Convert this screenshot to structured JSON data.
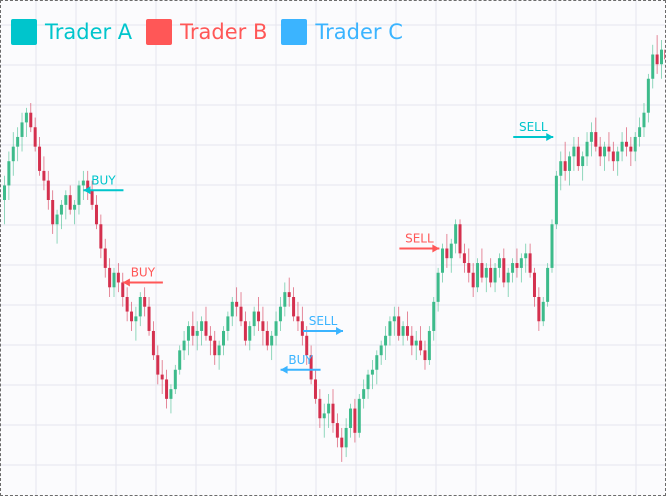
{
  "chart_data": {
    "type": "candlestick",
    "colors": {
      "up": "#3dbb8b",
      "down": "#d4304e",
      "grid": "#e6e6ee"
    },
    "legend": [
      {
        "name": "Trader A",
        "color": "#00c5cc"
      },
      {
        "name": "Trader B",
        "color": "#ff5757"
      },
      {
        "name": "Trader C",
        "color": "#3bb4ff"
      }
    ],
    "ylim": [
      0,
      100
    ],
    "candles": [
      [
        60,
        65,
        55,
        63
      ],
      [
        63,
        70,
        60,
        68
      ],
      [
        68,
        74,
        65,
        71
      ],
      [
        71,
        75,
        68,
        73
      ],
      [
        73,
        78,
        70,
        76
      ],
      [
        76,
        79,
        73,
        78
      ],
      [
        78,
        80,
        74,
        75
      ],
      [
        75,
        77,
        70,
        71
      ],
      [
        71,
        73,
        65,
        66
      ],
      [
        66,
        69,
        62,
        64
      ],
      [
        64,
        66,
        58,
        60
      ],
      [
        60,
        62,
        53,
        55
      ],
      [
        55,
        58,
        51,
        57
      ],
      [
        57,
        60,
        54,
        59
      ],
      [
        59,
        62,
        56,
        61
      ],
      [
        61,
        63,
        57,
        58
      ],
      [
        58,
        60,
        55,
        59
      ],
      [
        59,
        64,
        57,
        63
      ],
      [
        63,
        66,
        60,
        64
      ],
      [
        64,
        66,
        60,
        62
      ],
      [
        62,
        64,
        58,
        59
      ],
      [
        59,
        61,
        54,
        55
      ],
      [
        55,
        57,
        48,
        50
      ],
      [
        50,
        52,
        44,
        46
      ],
      [
        46,
        48,
        40,
        42
      ],
      [
        42,
        46,
        40,
        45
      ],
      [
        45,
        47,
        41,
        43
      ],
      [
        43,
        45,
        38,
        40
      ],
      [
        40,
        42,
        35,
        37
      ],
      [
        37,
        39,
        33,
        35
      ],
      [
        35,
        38,
        31,
        36
      ],
      [
        36,
        41,
        34,
        40
      ],
      [
        40,
        42,
        36,
        38
      ],
      [
        38,
        40,
        32,
        33
      ],
      [
        33,
        35,
        27,
        28
      ],
      [
        28,
        30,
        22,
        24
      ],
      [
        24,
        27,
        20,
        23
      ],
      [
        23,
        25,
        17,
        19
      ],
      [
        19,
        22,
        16,
        21
      ],
      [
        21,
        26,
        20,
        25
      ],
      [
        25,
        30,
        24,
        29
      ],
      [
        29,
        33,
        27,
        31
      ],
      [
        31,
        35,
        28,
        34
      ],
      [
        34,
        37,
        30,
        32
      ],
      [
        32,
        35,
        29,
        33
      ],
      [
        33,
        36,
        30,
        35
      ],
      [
        35,
        38,
        31,
        32
      ],
      [
        32,
        34,
        28,
        31
      ],
      [
        31,
        33,
        26,
        28
      ],
      [
        28,
        31,
        25,
        30
      ],
      [
        30,
        34,
        28,
        33
      ],
      [
        33,
        37,
        31,
        36
      ],
      [
        36,
        40,
        34,
        39
      ],
      [
        39,
        42,
        36,
        38
      ],
      [
        38,
        41,
        34,
        35
      ],
      [
        35,
        37,
        30,
        31
      ],
      [
        31,
        35,
        29,
        34
      ],
      [
        34,
        38,
        32,
        37
      ],
      [
        37,
        40,
        33,
        35
      ],
      [
        35,
        38,
        30,
        33
      ],
      [
        33,
        35,
        29,
        30
      ],
      [
        30,
        33,
        27,
        32
      ],
      [
        32,
        37,
        30,
        35
      ],
      [
        35,
        40,
        33,
        38
      ],
      [
        38,
        43,
        36,
        41
      ],
      [
        41,
        44,
        38,
        40
      ],
      [
        40,
        42,
        35,
        36
      ],
      [
        36,
        39,
        33,
        35
      ],
      [
        35,
        38,
        30,
        32
      ],
      [
        32,
        34,
        26,
        28
      ],
      [
        28,
        30,
        22,
        23
      ],
      [
        23,
        25,
        18,
        19
      ],
      [
        19,
        21,
        13,
        15
      ],
      [
        15,
        18,
        11,
        16
      ],
      [
        16,
        20,
        13,
        18
      ],
      [
        18,
        21,
        12,
        14
      ],
      [
        14,
        16,
        9,
        11
      ],
      [
        11,
        13,
        6,
        9
      ],
      [
        9,
        15,
        7,
        13
      ],
      [
        13,
        18,
        11,
        17
      ],
      [
        17,
        19,
        10,
        12
      ],
      [
        12,
        20,
        11,
        19
      ],
      [
        19,
        23,
        17,
        21
      ],
      [
        21,
        25,
        19,
        24
      ],
      [
        24,
        27,
        21,
        25
      ],
      [
        25,
        29,
        22,
        28
      ],
      [
        28,
        31,
        26,
        30
      ],
      [
        30,
        34,
        27,
        32
      ],
      [
        32,
        36,
        30,
        35
      ],
      [
        35,
        38,
        32,
        36
      ],
      [
        36,
        38,
        31,
        32
      ],
      [
        32,
        35,
        30,
        34
      ],
      [
        34,
        37,
        31,
        32
      ],
      [
        32,
        34,
        28,
        30
      ],
      [
        30,
        33,
        27,
        31
      ],
      [
        31,
        34,
        28,
        29
      ],
      [
        29,
        31,
        25,
        27
      ],
      [
        27,
        34,
        26,
        33
      ],
      [
        33,
        40,
        31,
        39
      ],
      [
        39,
        46,
        37,
        45
      ],
      [
        45,
        51,
        43,
        50
      ],
      [
        50,
        53,
        46,
        48
      ],
      [
        48,
        52,
        45,
        51
      ],
      [
        51,
        56,
        49,
        55
      ],
      [
        55,
        56,
        48,
        49
      ],
      [
        49,
        51,
        45,
        47
      ],
      [
        47,
        50,
        43,
        45
      ],
      [
        45,
        47,
        40,
        42
      ],
      [
        42,
        48,
        41,
        47
      ],
      [
        47,
        50,
        43,
        44
      ],
      [
        44,
        47,
        41,
        46
      ],
      [
        46,
        48,
        42,
        43
      ],
      [
        43,
        47,
        41,
        46
      ],
      [
        46,
        49,
        44,
        48
      ],
      [
        48,
        50,
        42,
        43
      ],
      [
        43,
        46,
        40,
        45
      ],
      [
        45,
        48,
        43,
        47
      ],
      [
        47,
        50,
        44,
        46
      ],
      [
        46,
        49,
        43,
        48
      ],
      [
        48,
        51,
        45,
        49
      ],
      [
        49,
        51,
        44,
        45
      ],
      [
        45,
        46,
        38,
        40
      ],
      [
        40,
        42,
        33,
        35
      ],
      [
        35,
        40,
        34,
        39
      ],
      [
        39,
        47,
        38,
        46
      ],
      [
        46,
        56,
        45,
        55
      ],
      [
        55,
        66,
        54,
        65
      ],
      [
        65,
        70,
        62,
        68
      ],
      [
        68,
        72,
        64,
        66
      ],
      [
        66,
        70,
        63,
        69
      ],
      [
        69,
        73,
        66,
        71
      ],
      [
        71,
        73,
        66,
        67
      ],
      [
        67,
        70,
        64,
        69
      ],
      [
        69,
        74,
        67,
        72
      ],
      [
        72,
        76,
        69,
        74
      ],
      [
        74,
        77,
        70,
        71
      ],
      [
        71,
        73,
        67,
        69
      ],
      [
        69,
        72,
        66,
        71
      ],
      [
        71,
        74,
        68,
        70
      ],
      [
        70,
        72,
        66,
        68
      ],
      [
        68,
        71,
        65,
        70
      ],
      [
        70,
        74,
        68,
        72
      ],
      [
        72,
        75,
        69,
        71
      ],
      [
        71,
        73,
        67,
        70
      ],
      [
        70,
        74,
        68,
        73
      ],
      [
        73,
        77,
        71,
        75
      ],
      [
        75,
        80,
        73,
        78
      ],
      [
        78,
        86,
        76,
        85
      ],
      [
        85,
        92,
        83,
        90
      ],
      [
        90,
        94,
        86,
        88
      ],
      [
        88,
        93,
        85,
        91
      ],
      [
        91,
        95,
        87,
        89
      ],
      [
        89,
        92,
        85,
        87
      ],
      [
        87,
        90,
        84,
        88
      ],
      [
        88,
        91,
        85,
        86
      ]
    ],
    "annotations": [
      {
        "trader": "Trader A",
        "label": "BUY",
        "index": 17,
        "value": 62
      },
      {
        "trader": "Trader B",
        "label": "BUY",
        "index": 26,
        "value": 43
      },
      {
        "trader": "Trader C",
        "label": "SELL",
        "index": 79,
        "value": 33
      },
      {
        "trader": "Trader B",
        "label": "SELL",
        "index": 101,
        "value": 50
      },
      {
        "trader": "Trader C",
        "label": "BUY",
        "index": 62,
        "value": 25
      },
      {
        "trader": "Trader A",
        "label": "SELL",
        "index": 127,
        "value": 73
      }
    ]
  }
}
